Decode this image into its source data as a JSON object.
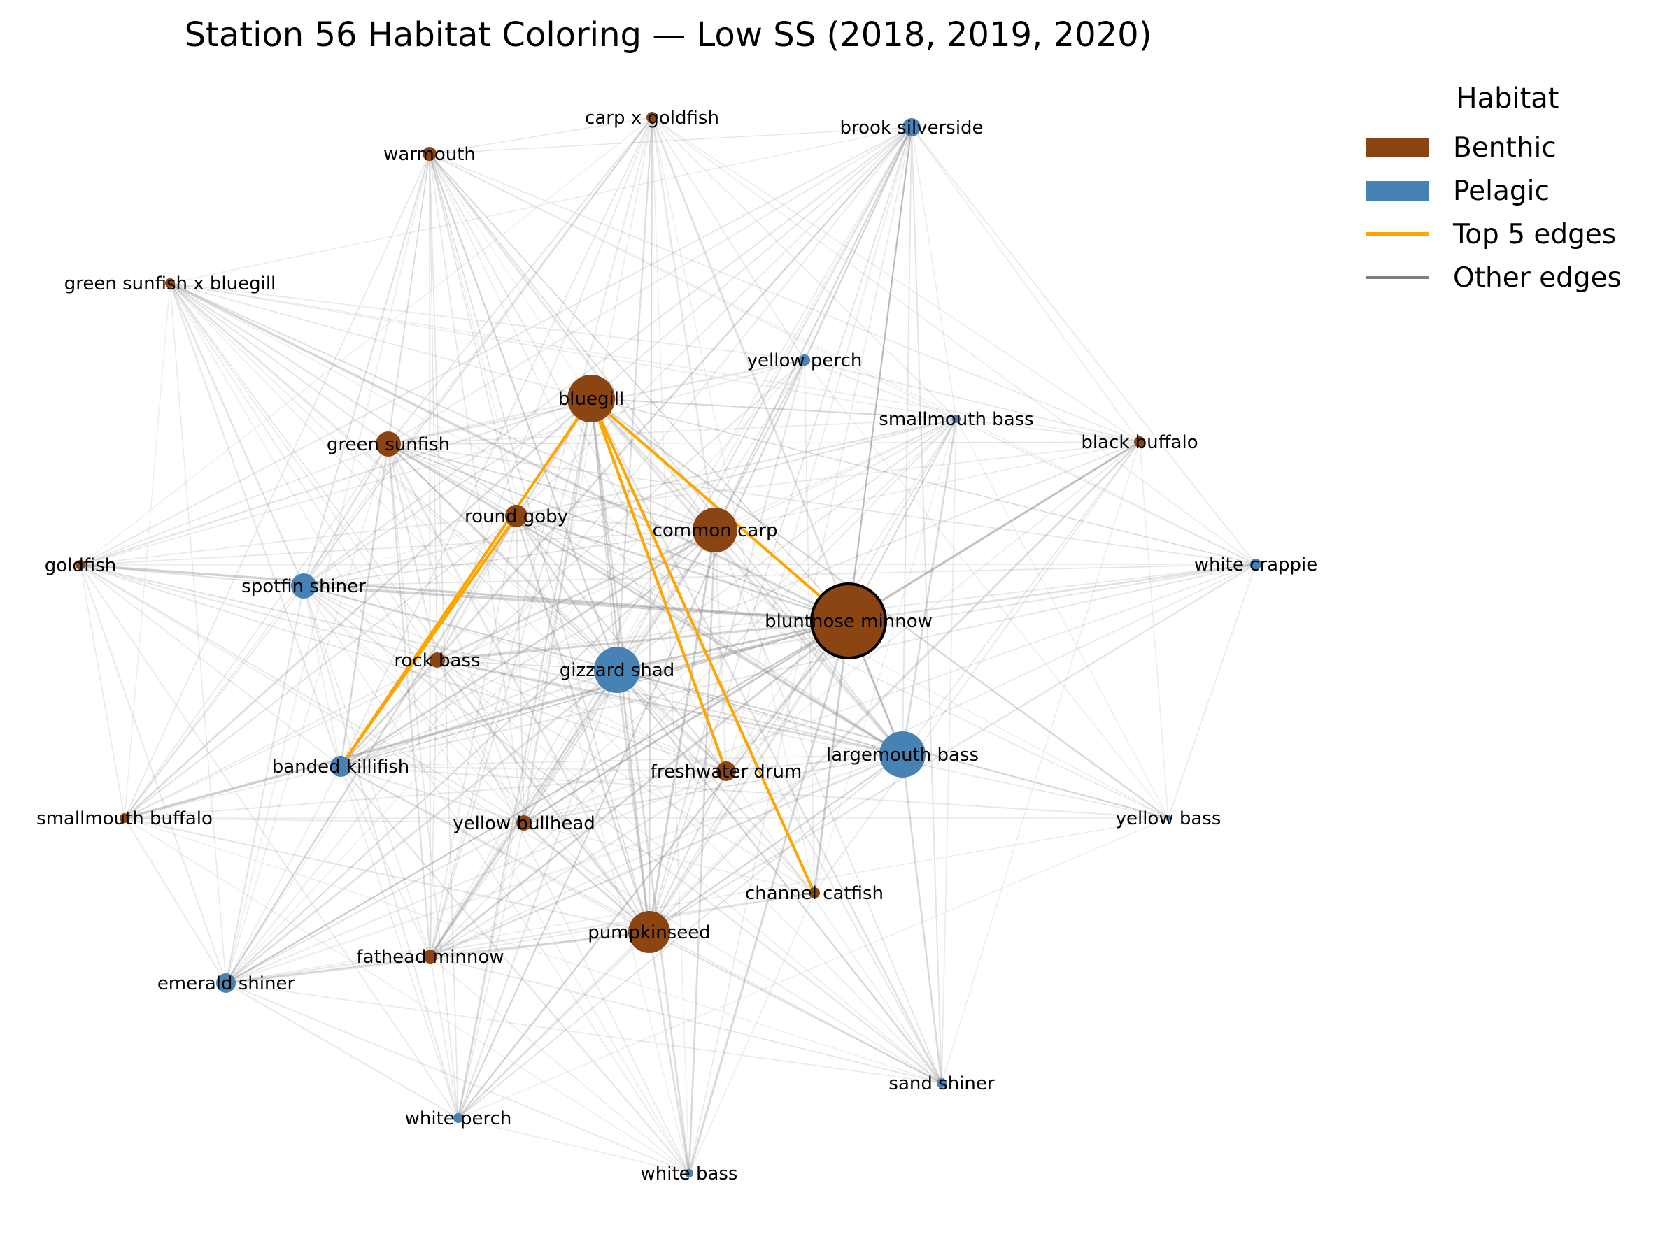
{
  "title": "Station 56 Habitat Coloring — Low SS  (2018, 2019, 2020)",
  "colors": {
    "benthic": "#8b4513",
    "pelagic": "#4682b4",
    "top_edge": "#ffa500",
    "other_edge": "#808080"
  },
  "legend": {
    "title": "Habitat",
    "items": [
      {
        "label": "Benthic",
        "kind": "patch",
        "color": "#8b4513"
      },
      {
        "label": "Pelagic",
        "kind": "patch",
        "color": "#4682b4"
      },
      {
        "label": "Top 5 edges",
        "kind": "line",
        "color": "#ffa500"
      },
      {
        "label": "Other edges",
        "kind": "line",
        "color": "#808080"
      }
    ]
  },
  "nodes": [
    {
      "id": "carp x goldfish",
      "habitat": "Benthic"
    },
    {
      "id": "brook silverside",
      "habitat": "Pelagic"
    },
    {
      "id": "warmouth",
      "habitat": "Benthic"
    },
    {
      "id": "green sunfish x bluegill",
      "habitat": "Benthic"
    },
    {
      "id": "yellow perch",
      "habitat": "Pelagic"
    },
    {
      "id": "bluegill",
      "habitat": "Benthic"
    },
    {
      "id": "smallmouth bass",
      "habitat": "Pelagic"
    },
    {
      "id": "black buffalo",
      "habitat": "Benthic"
    },
    {
      "id": "green sunfish",
      "habitat": "Benthic"
    },
    {
      "id": "round goby",
      "habitat": "Benthic"
    },
    {
      "id": "common carp",
      "habitat": "Benthic"
    },
    {
      "id": "goldfish",
      "habitat": "Benthic"
    },
    {
      "id": "white crappie",
      "habitat": "Pelagic"
    },
    {
      "id": "spotfin shiner",
      "habitat": "Pelagic"
    },
    {
      "id": "bluntnose minnow",
      "habitat": "Benthic",
      "highlighted": true
    },
    {
      "id": "rock bass",
      "habitat": "Benthic"
    },
    {
      "id": "gizzard shad",
      "habitat": "Pelagic"
    },
    {
      "id": "largemouth bass",
      "habitat": "Pelagic"
    },
    {
      "id": "banded killifish",
      "habitat": "Pelagic"
    },
    {
      "id": "freshwater drum",
      "habitat": "Benthic"
    },
    {
      "id": "smallmouth buffalo",
      "habitat": "Benthic"
    },
    {
      "id": "yellow bullhead",
      "habitat": "Benthic"
    },
    {
      "id": "yellow bass",
      "habitat": "Pelagic"
    },
    {
      "id": "channel catfish",
      "habitat": "Benthic"
    },
    {
      "id": "pumpkinseed",
      "habitat": "Benthic"
    },
    {
      "id": "fathead minnow",
      "habitat": "Benthic"
    },
    {
      "id": "emerald shiner",
      "habitat": "Pelagic"
    },
    {
      "id": "sand shiner",
      "habitat": "Pelagic"
    },
    {
      "id": "white perch",
      "habitat": "Pelagic"
    },
    {
      "id": "white bass",
      "habitat": "Pelagic"
    }
  ],
  "top_edges": [
    [
      "bluegill",
      "banded killifish"
    ],
    [
      "bluegill",
      "bluntnose minnow"
    ],
    [
      "bluegill",
      "channel catfish"
    ],
    [
      "round goby",
      "banded killifish"
    ],
    [
      "bluegill",
      "freshwater drum"
    ]
  ]
}
